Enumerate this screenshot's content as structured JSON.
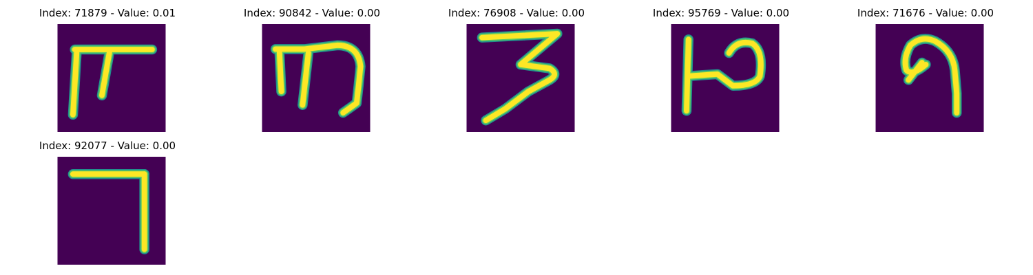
{
  "colors": {
    "background": "#440154",
    "stroke_edge": "#21908d",
    "stroke_mid": "#5ec962",
    "stroke_core": "#fde725"
  },
  "panels": [
    {
      "caption": "Index: 71879 - Value: 0.01",
      "glyph": "glyph-71879-icon"
    },
    {
      "caption": "Index: 90842 - Value: 0.00",
      "glyph": "glyph-90842-icon"
    },
    {
      "caption": "Index: 76908 - Value: 0.00",
      "glyph": "glyph-76908-icon"
    },
    {
      "caption": "Index: 95769 - Value: 0.00",
      "glyph": "glyph-95769-icon"
    },
    {
      "caption": "Index: 71676 - Value: 0.00",
      "glyph": "glyph-71676-icon"
    },
    {
      "caption": "Index: 92077 - Value: 0.00",
      "glyph": "glyph-92077-icon"
    }
  ]
}
